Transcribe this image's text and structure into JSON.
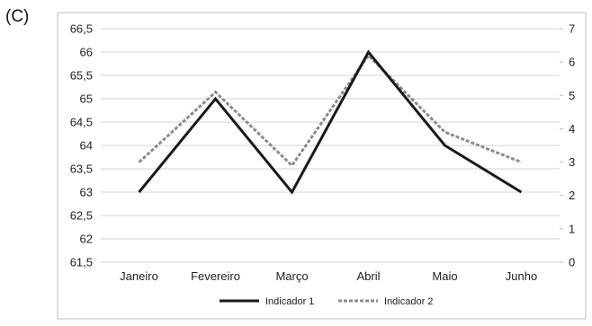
{
  "panel_label": "(C)",
  "chart_data": {
    "type": "line",
    "categories": [
      "Janeiro",
      "Fevereiro",
      "Março",
      "Abril",
      "Maio",
      "Junho"
    ],
    "series": [
      {
        "name": "Indicador 1",
        "axis": "left",
        "color": "#1a1a1a",
        "style": "solid",
        "values": [
          63,
          65,
          63,
          66,
          64,
          63
        ]
      },
      {
        "name": "Indicador 2",
        "axis": "right",
        "color": "#8c8c8c",
        "style": "dashed",
        "values": [
          3,
          5.1,
          2.9,
          6.2,
          3.9,
          3
        ]
      }
    ],
    "ylim_left": [
      61.5,
      66.5
    ],
    "ylim_right": [
      0,
      7
    ],
    "yticks_left": [
      "61,5",
      "62",
      "62,5",
      "63",
      "63,5",
      "64",
      "64,5",
      "65",
      "65,5",
      "66",
      "66,5"
    ],
    "yticks_right": [
      "0",
      "1",
      "2",
      "3",
      "4",
      "5",
      "6",
      "7"
    ],
    "grid": true,
    "legend": "bottom-center",
    "title": "",
    "xlabel": "",
    "ylabel": ""
  }
}
